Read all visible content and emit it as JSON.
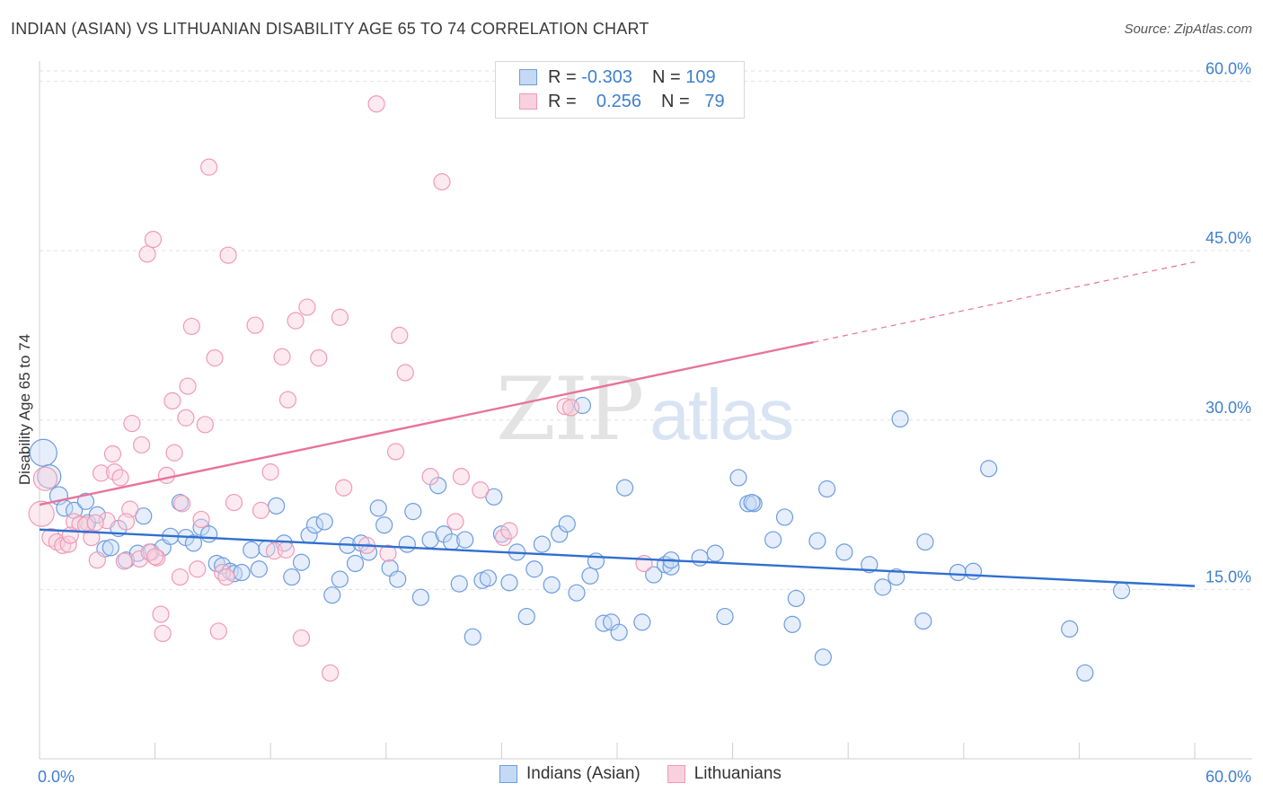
{
  "title": "INDIAN (ASIAN) VS LITHUANIAN DISABILITY AGE 65 TO 74 CORRELATION CHART",
  "source": "Source: ZipAtlas.com",
  "watermark": {
    "zip": "ZIP",
    "atlas": "atlas"
  },
  "legend": {
    "rows": [
      {
        "r_label": "R =",
        "r_value": "-0.303",
        "n_label": "N =",
        "n_value": "109",
        "color": "#6d9de0"
      },
      {
        "r_label": "R =",
        "r_value": "0.256",
        "n_label": "N =",
        "n_value": "79",
        "color": "#f09ab4"
      }
    ]
  },
  "bottom_legend": [
    {
      "label": "Indians (Asian)",
      "color": "#6d9de0"
    },
    {
      "label": "Lithuanians",
      "color": "#f09ab4"
    }
  ],
  "chart_data": {
    "type": "scatter",
    "title": "INDIAN (ASIAN) VS LITHUANIAN DISABILITY AGE 65 TO 74 CORRELATION CHART",
    "xlabel": "",
    "ylabel": "Disability Age 65 to 74",
    "xlim": [
      0,
      60
    ],
    "ylim": [
      0,
      61
    ],
    "x_tick_labels": [
      "0.0%",
      "60.0%"
    ],
    "y_ticks": [
      15,
      30,
      45,
      60
    ],
    "y_tick_labels": [
      "15.0%",
      "30.0%",
      "45.0%",
      "60.0%"
    ],
    "grid": true,
    "legend_position": "top-center",
    "series": [
      {
        "name": "Indians (Asian)",
        "color": "#6d9de0",
        "trend": {
          "x": [
            0,
            60
          ],
          "y": [
            20.3,
            15.3
          ],
          "dashed_from": null
        },
        "points": [
          [
            0.2,
            27.1,
            15
          ],
          [
            0.5,
            25.0,
            13
          ],
          [
            1.0,
            23.3,
            10
          ],
          [
            1.3,
            22.2,
            9
          ],
          [
            1.8,
            22.0,
            9
          ],
          [
            2.4,
            22.8,
            9
          ],
          [
            2.5,
            20.9,
            9
          ],
          [
            3.0,
            21.6,
            9
          ],
          [
            3.4,
            18.6,
            9
          ],
          [
            3.7,
            18.7,
            9
          ],
          [
            4.1,
            20.4,
            9
          ],
          [
            4.5,
            17.6,
            9
          ],
          [
            5.1,
            18.2,
            9
          ],
          [
            5.4,
            21.5,
            9
          ],
          [
            5.8,
            18.3,
            9
          ],
          [
            6.4,
            18.7,
            9
          ],
          [
            6.8,
            19.7,
            9
          ],
          [
            7.3,
            22.7,
            9
          ],
          [
            7.6,
            19.6,
            9
          ],
          [
            8.0,
            19.1,
            9
          ],
          [
            8.4,
            20.5,
            9
          ],
          [
            8.8,
            19.9,
            9
          ],
          [
            9.2,
            17.3,
            9
          ],
          [
            9.5,
            17.1,
            9
          ],
          [
            9.9,
            16.6,
            9
          ],
          [
            10.1,
            16.4,
            9
          ],
          [
            10.5,
            16.5,
            9
          ],
          [
            11.0,
            18.5,
            9
          ],
          [
            11.4,
            16.8,
            9
          ],
          [
            11.8,
            18.6,
            9
          ],
          [
            12.3,
            22.4,
            9
          ],
          [
            12.7,
            19.1,
            9
          ],
          [
            13.1,
            16.1,
            9
          ],
          [
            13.6,
            17.4,
            9
          ],
          [
            14.0,
            19.8,
            9
          ],
          [
            14.3,
            20.7,
            9
          ],
          [
            14.8,
            21.0,
            9
          ],
          [
            15.2,
            14.5,
            9
          ],
          [
            15.6,
            15.9,
            9
          ],
          [
            16.0,
            18.9,
            9
          ],
          [
            16.4,
            17.3,
            9
          ],
          [
            16.7,
            19.1,
            9
          ],
          [
            17.1,
            18.3,
            9
          ],
          [
            17.6,
            22.2,
            9
          ],
          [
            17.9,
            20.7,
            9
          ],
          [
            18.2,
            16.9,
            9
          ],
          [
            18.6,
            15.9,
            9
          ],
          [
            19.1,
            19.0,
            9
          ],
          [
            19.4,
            21.9,
            9
          ],
          [
            19.8,
            14.3,
            9
          ],
          [
            20.3,
            19.4,
            9
          ],
          [
            20.7,
            24.2,
            9
          ],
          [
            21.0,
            19.9,
            9
          ],
          [
            21.4,
            19.2,
            9
          ],
          [
            21.8,
            15.5,
            9
          ],
          [
            22.1,
            19.4,
            9
          ],
          [
            22.5,
            10.8,
            9
          ],
          [
            23.0,
            15.8,
            9
          ],
          [
            23.3,
            16.0,
            9
          ],
          [
            23.6,
            23.2,
            9
          ],
          [
            24.0,
            19.9,
            9
          ],
          [
            24.4,
            15.6,
            9
          ],
          [
            24.8,
            18.3,
            9
          ],
          [
            25.3,
            12.6,
            9
          ],
          [
            25.7,
            16.8,
            9
          ],
          [
            26.1,
            19.0,
            9
          ],
          [
            26.6,
            15.4,
            9
          ],
          [
            27.0,
            19.9,
            9
          ],
          [
            27.4,
            20.8,
            9
          ],
          [
            27.9,
            14.7,
            9
          ],
          [
            28.2,
            31.3,
            9
          ],
          [
            28.6,
            16.2,
            9
          ],
          [
            28.9,
            17.5,
            9
          ],
          [
            29.3,
            12.0,
            9
          ],
          [
            29.7,
            12.1,
            9
          ],
          [
            30.1,
            11.2,
            9
          ],
          [
            30.4,
            24.0,
            9
          ],
          [
            31.3,
            12.1,
            9
          ],
          [
            31.9,
            16.3,
            9
          ],
          [
            32.5,
            17.2,
            9
          ],
          [
            32.8,
            17.0,
            9
          ],
          [
            34.3,
            17.8,
            9
          ],
          [
            35.1,
            18.2,
            9
          ],
          [
            35.6,
            12.6,
            9
          ],
          [
            36.3,
            24.9,
            9
          ],
          [
            36.8,
            22.6,
            9
          ],
          [
            37.1,
            22.6,
            9
          ],
          [
            38.1,
            19.4,
            9
          ],
          [
            38.7,
            21.4,
            9
          ],
          [
            39.1,
            11.9,
            9
          ],
          [
            39.3,
            14.2,
            9
          ],
          [
            40.4,
            19.3,
            9
          ],
          [
            40.7,
            9.0,
            9
          ],
          [
            40.9,
            23.9,
            9
          ],
          [
            41.8,
            18.3,
            9
          ],
          [
            43.1,
            17.2,
            9
          ],
          [
            43.8,
            15.2,
            9
          ],
          [
            44.5,
            16.1,
            9
          ],
          [
            44.7,
            30.1,
            9
          ],
          [
            45.9,
            12.2,
            9
          ],
          [
            46.0,
            19.2,
            9
          ],
          [
            47.7,
            16.5,
            9
          ],
          [
            48.5,
            16.6,
            9
          ],
          [
            49.3,
            25.7,
            9
          ],
          [
            53.5,
            11.5,
            9
          ],
          [
            54.3,
            7.6,
            9
          ],
          [
            56.2,
            14.9,
            9
          ],
          [
            32.8,
            17.6,
            9
          ],
          [
            37.0,
            22.7,
            9
          ]
        ]
      },
      {
        "name": "Lithuanians",
        "color": "#f09ab4",
        "trend": {
          "x": [
            0,
            40.2,
            60
          ],
          "y": [
            22.5,
            36.9,
            44.0
          ],
          "dashed_from": 40.2
        },
        "points": [
          [
            0.1,
            21.7,
            14
          ],
          [
            0.3,
            24.8,
            13
          ],
          [
            0.6,
            19.6,
            10
          ],
          [
            0.9,
            19.2,
            9
          ],
          [
            1.2,
            18.9,
            9
          ],
          [
            1.5,
            19.0,
            9
          ],
          [
            1.8,
            21.0,
            9
          ],
          [
            2.1,
            20.8,
            9
          ],
          [
            2.4,
            20.7,
            9
          ],
          [
            2.7,
            19.6,
            9
          ],
          [
            3.0,
            17.6,
            9
          ],
          [
            3.2,
            25.3,
            9
          ],
          [
            3.5,
            21.1,
            9
          ],
          [
            3.8,
            27.0,
            9
          ],
          [
            3.9,
            25.4,
            9
          ],
          [
            4.2,
            24.9,
            9
          ],
          [
            4.4,
            17.5,
            9
          ],
          [
            4.7,
            22.1,
            9
          ],
          [
            4.8,
            29.7,
            9
          ],
          [
            5.2,
            17.7,
            9
          ],
          [
            5.3,
            27.8,
            9
          ],
          [
            5.6,
            44.7,
            9
          ],
          [
            5.9,
            46.0,
            9
          ],
          [
            6.1,
            17.8,
            9
          ],
          [
            6.3,
            12.8,
            9
          ],
          [
            6.4,
            11.1,
            9
          ],
          [
            6.6,
            25.1,
            9
          ],
          [
            6.9,
            31.7,
            9
          ],
          [
            7.0,
            27.1,
            9
          ],
          [
            7.4,
            22.6,
            9
          ],
          [
            7.6,
            30.2,
            9
          ],
          [
            7.7,
            33.0,
            9
          ],
          [
            7.9,
            38.3,
            9
          ],
          [
            8.2,
            16.8,
            9
          ],
          [
            8.4,
            21.2,
            9
          ],
          [
            8.6,
            29.6,
            9
          ],
          [
            8.8,
            52.4,
            9
          ],
          [
            9.1,
            35.5,
            9
          ],
          [
            9.3,
            11.3,
            9
          ],
          [
            9.5,
            16.5,
            9
          ],
          [
            9.8,
            44.6,
            9
          ],
          [
            10.1,
            22.7,
            9
          ],
          [
            11.2,
            38.4,
            9
          ],
          [
            11.5,
            22.0,
            9
          ],
          [
            12.0,
            25.4,
            9
          ],
          [
            12.2,
            18.4,
            9
          ],
          [
            12.6,
            35.6,
            9
          ],
          [
            12.9,
            31.8,
            9
          ],
          [
            13.3,
            38.8,
            9
          ],
          [
            13.6,
            10.7,
            9
          ],
          [
            13.9,
            40.0,
            9
          ],
          [
            14.5,
            35.5,
            9
          ],
          [
            15.1,
            7.6,
            9
          ],
          [
            15.6,
            39.1,
            9
          ],
          [
            15.8,
            24.0,
            9
          ],
          [
            17.0,
            18.9,
            9
          ],
          [
            17.5,
            58.0,
            9
          ],
          [
            18.1,
            18.2,
            9
          ],
          [
            18.5,
            27.2,
            9
          ],
          [
            18.7,
            37.5,
            9
          ],
          [
            19.0,
            34.2,
            9
          ],
          [
            20.3,
            25.0,
            9
          ],
          [
            20.9,
            51.1,
            9
          ],
          [
            21.6,
            21.0,
            9
          ],
          [
            21.9,
            25.0,
            9
          ],
          [
            22.9,
            23.8,
            9
          ],
          [
            24.1,
            19.6,
            9
          ],
          [
            24.4,
            20.2,
            9
          ],
          [
            27.3,
            31.2,
            9
          ],
          [
            27.6,
            31.1,
            9
          ],
          [
            31.4,
            17.3,
            9
          ],
          [
            2.9,
            20.9,
            9
          ],
          [
            1.6,
            19.8,
            9
          ],
          [
            5.7,
            18.3,
            9
          ],
          [
            9.7,
            16.1,
            9
          ],
          [
            7.3,
            16.1,
            9
          ],
          [
            6.0,
            17.9,
            9
          ],
          [
            12.8,
            18.5,
            9
          ],
          [
            4.5,
            21.0,
            9
          ]
        ]
      }
    ]
  }
}
